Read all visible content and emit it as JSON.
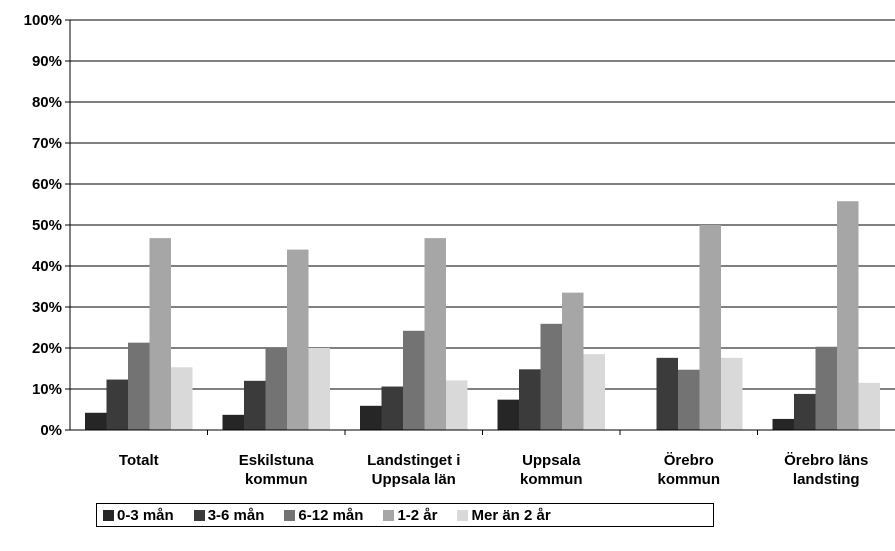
{
  "chart_data": {
    "type": "bar",
    "title": "",
    "xlabel": "",
    "ylabel": "",
    "ylim": [
      0,
      100
    ],
    "y_ticks": [
      "0%",
      "10%",
      "20%",
      "30%",
      "40%",
      "50%",
      "60%",
      "70%",
      "80%",
      "90%",
      "100%"
    ],
    "grid": true,
    "legend_position": "bottom",
    "categories": [
      [
        "Totalt"
      ],
      [
        "Eskilstuna",
        "kommun"
      ],
      [
        "Landstinget i",
        "Uppsala län"
      ],
      [
        "Uppsala",
        "kommun"
      ],
      [
        "Örebro",
        "kommun"
      ],
      [
        "Örebro läns",
        "landsting"
      ]
    ],
    "series": [
      {
        "name": "0-3 mån",
        "color": "#262626",
        "values": [
          4.2,
          3.7,
          5.9,
          7.4,
          0,
          2.7
        ]
      },
      {
        "name": "3-6 mån",
        "color": "#3b3b3b",
        "values": [
          12.3,
          12.0,
          10.6,
          14.8,
          17.6,
          8.8
        ]
      },
      {
        "name": "6-12 mån",
        "color": "#737373",
        "values": [
          21.3,
          20.0,
          24.2,
          25.9,
          14.7,
          20.3
        ]
      },
      {
        "name": "1-2 år",
        "color": "#a6a6a6",
        "values": [
          46.8,
          44.0,
          46.8,
          33.5,
          50.0,
          55.8
        ]
      },
      {
        "name": "Mer än 2 år",
        "color": "#d9d9d9",
        "values": [
          15.3,
          20.0,
          12.1,
          18.5,
          17.6,
          11.5
        ]
      }
    ]
  }
}
